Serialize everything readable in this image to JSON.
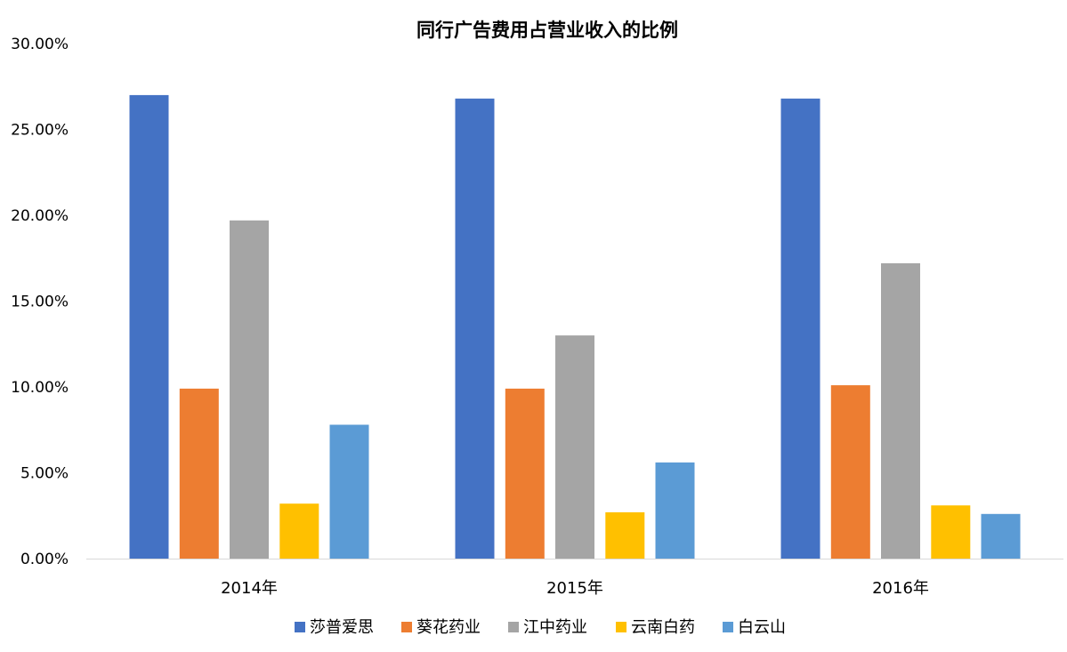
{
  "chart_data": {
    "type": "bar",
    "title": "同行广告费用占营业收入的比例",
    "xlabel": "",
    "ylabel": "",
    "categories": [
      "2014年",
      "2015年",
      "2016年"
    ],
    "series": [
      {
        "name": "莎普爱思",
        "color": "#4472C4",
        "values": [
          27.0,
          26.8,
          26.8
        ]
      },
      {
        "name": "葵花药业",
        "color": "#ED7D31",
        "values": [
          9.9,
          9.9,
          10.1
        ]
      },
      {
        "name": "江中药业",
        "color": "#A5A5A5",
        "values": [
          19.7,
          13.0,
          17.2
        ]
      },
      {
        "name": "云南白药",
        "color": "#FFC000",
        "values": [
          3.2,
          2.7,
          3.1
        ]
      },
      {
        "name": "白云山",
        "color": "#5B9BD5",
        "values": [
          7.8,
          5.6,
          2.6
        ]
      }
    ],
    "ylim": [
      0,
      30
    ],
    "yticks": [
      0,
      5,
      10,
      15,
      20,
      25,
      30
    ],
    "ytick_labels": [
      "0.00%",
      "5.00%",
      "10.00%",
      "15.00%",
      "20.00%",
      "25.00%",
      "30.00%"
    ],
    "grid": false,
    "legend_position": "bottom"
  }
}
